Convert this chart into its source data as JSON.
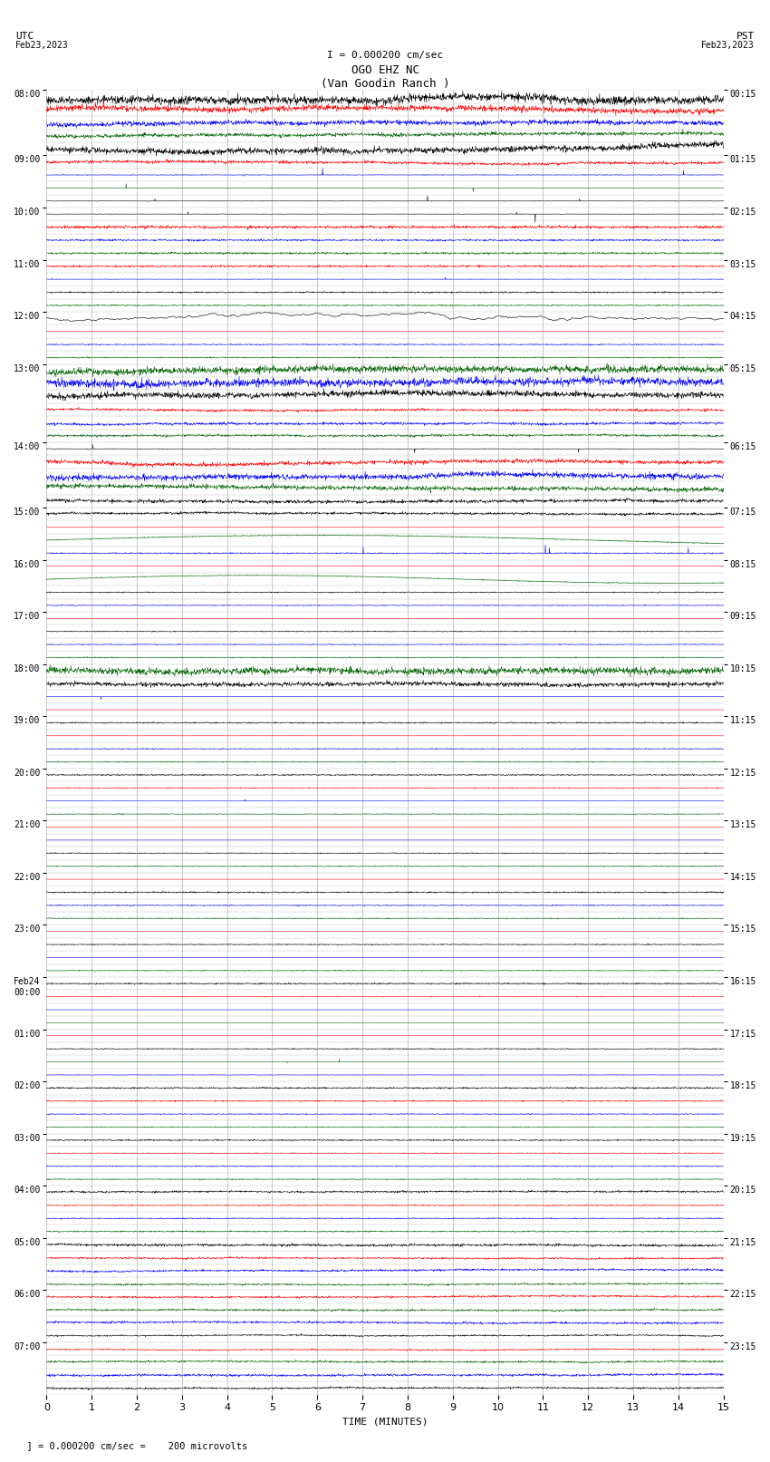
{
  "title_line1": "OGO EHZ NC",
  "title_line2": "(Van Goodin Ranch )",
  "scale_label": "I = 0.000200 cm/sec",
  "utc_label": "UTC\nFeb23,2023",
  "pst_label": "PST\nFeb23,2023",
  "xlabel": "TIME (MINUTES)",
  "footer": "= 0.000200 cm/sec =    200 microvolts",
  "xlim": [
    0,
    15
  ],
  "xticks": [
    0,
    1,
    2,
    3,
    4,
    5,
    6,
    7,
    8,
    9,
    10,
    11,
    12,
    13,
    14,
    15
  ],
  "background_color": "#ffffff",
  "grid_color": "#777777",
  "colors": {
    "black": "#000000",
    "red": "#ff0000",
    "blue": "#0000ff",
    "green": "#006400"
  },
  "left_labels_utc": [
    "08:00",
    "09:00",
    "10:00",
    "11:00",
    "12:00",
    "13:00",
    "14:00",
    "15:00",
    "16:00",
    "17:00",
    "18:00",
    "19:00",
    "20:00",
    "21:00",
    "22:00",
    "23:00",
    "Feb24\n00:00",
    "01:00",
    "02:00",
    "03:00",
    "04:00",
    "05:00",
    "06:00",
    "07:00"
  ],
  "right_labels_pst": [
    "00:15",
    "01:15",
    "02:15",
    "03:15",
    "04:15",
    "05:15",
    "06:15",
    "07:15",
    "08:15",
    "09:15",
    "10:15",
    "11:15",
    "12:15",
    "13:15",
    "14:15",
    "15:15",
    "16:15",
    "17:15",
    "18:15",
    "19:15",
    "20:15",
    "21:15",
    "22:15",
    "23:15"
  ],
  "figsize": [
    8.5,
    16.13
  ],
  "dpi": 100
}
